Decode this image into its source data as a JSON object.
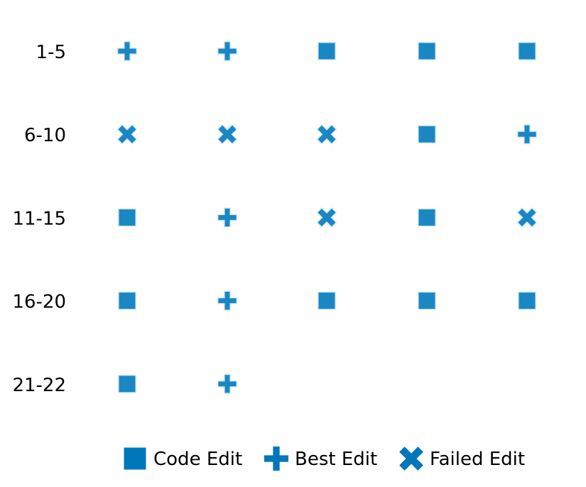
{
  "chart_data": {
    "type": "scatter",
    "title": "",
    "xlabel": "",
    "ylabel": "",
    "grid": false,
    "legend_position": "bottom",
    "colors": {
      "marker": "#1a87c3",
      "legend": "#0077bb",
      "halo": "#d6ecf8"
    },
    "rows": [
      {
        "label": "1-5",
        "marks": [
          "best",
          "best",
          "code",
          "code",
          "code"
        ]
      },
      {
        "label": "6-10",
        "marks": [
          "failed",
          "failed",
          "failed",
          "code",
          "best"
        ]
      },
      {
        "label": "11-15",
        "marks": [
          "code",
          "best",
          "failed",
          "code",
          "failed"
        ]
      },
      {
        "label": "16-20",
        "marks": [
          "code",
          "best",
          "code",
          "code",
          "code"
        ]
      },
      {
        "label": "21-22",
        "marks": [
          "code",
          "best"
        ]
      }
    ],
    "legend": [
      {
        "key": "code",
        "label": "Code Edit"
      },
      {
        "key": "best",
        "label": "Best Edit"
      },
      {
        "key": "failed",
        "label": "Failed Edit"
      }
    ]
  }
}
